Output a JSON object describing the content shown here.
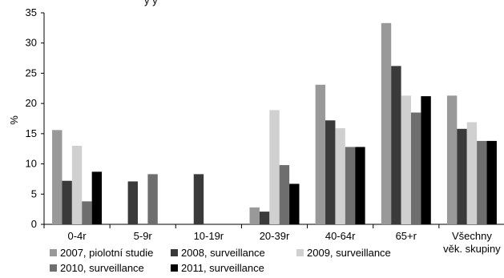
{
  "chart_data": {
    "type": "bar",
    "title_fragment": "y     y",
    "ylabel": "%",
    "ylim": [
      0,
      35
    ],
    "yticks": [
      0,
      5,
      10,
      15,
      20,
      25,
      30,
      35
    ],
    "categories": [
      "0-4r",
      "5-9r",
      "10-19r",
      "20-39r",
      "40-64r",
      "65+r",
      [
        "Všechny",
        "věk. skupiny"
      ]
    ],
    "series": [
      {
        "name": "2007, piolotní studie",
        "color": "#999999",
        "values": [
          15.6,
          0,
          0,
          2.8,
          23.1,
          33.3,
          21.3
        ]
      },
      {
        "name": "2008, surveillance",
        "color": "#3a3a3a",
        "values": [
          7.2,
          7.1,
          8.3,
          2.1,
          17.2,
          26.2,
          15.8
        ]
      },
      {
        "name": "2009, surveillance",
        "color": "#d0d0d0",
        "values": [
          13.0,
          0,
          0,
          18.9,
          15.9,
          21.3,
          16.9
        ]
      },
      {
        "name": "2010, surveillance",
        "color": "#6e6e6e",
        "values": [
          3.8,
          8.3,
          0,
          9.8,
          12.8,
          18.5,
          13.8
        ]
      },
      {
        "name": "2011, surveillance",
        "color": "#000000",
        "values": [
          8.7,
          0,
          0,
          6.7,
          12.8,
          21.2,
          13.8
        ]
      }
    ],
    "legend_position": "bottom",
    "grid": false
  }
}
